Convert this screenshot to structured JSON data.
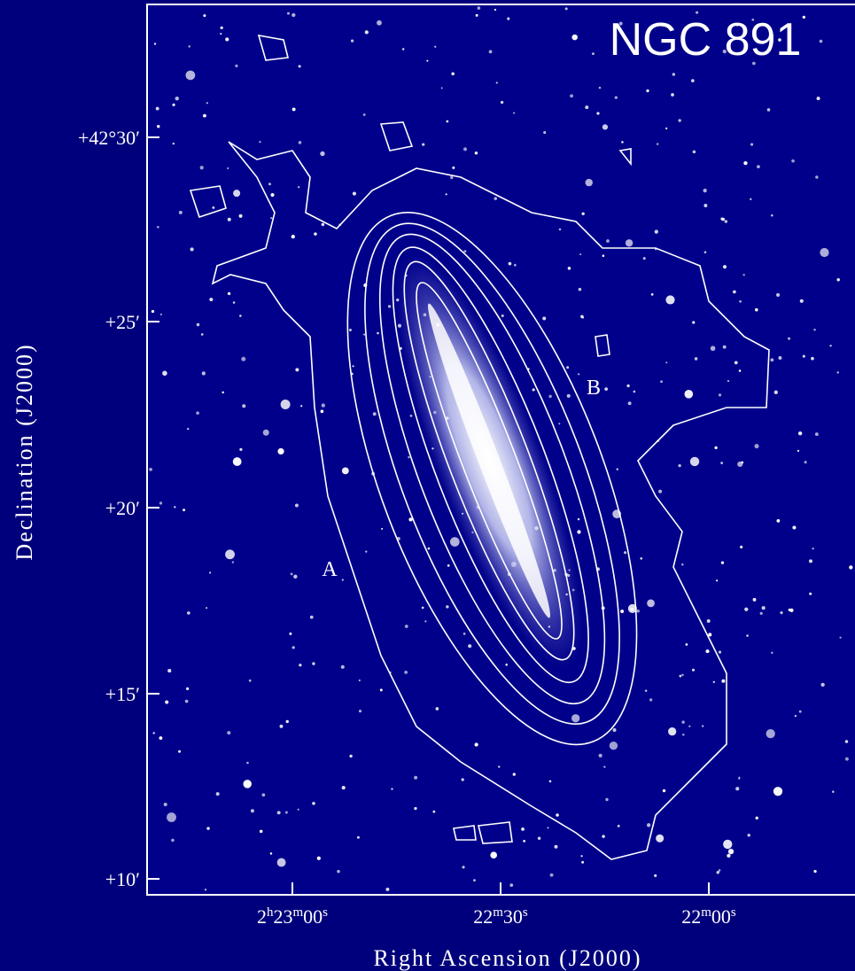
{
  "title": "NGC 891",
  "x_axis": {
    "label": "Right Ascension (J2000)",
    "ticks": [
      [
        "2",
        "h",
        "23",
        "m",
        "00",
        "s"
      ],
      [
        "22",
        "m",
        "30",
        "s"
      ],
      [
        "22",
        "m",
        "00",
        "s"
      ]
    ]
  },
  "y_axis": {
    "label": "Declination (J2000)",
    "ticks": [
      "+42°30′",
      "+25′",
      "+20′",
      "+15′",
      "+10′"
    ]
  },
  "annotations": [
    "A",
    "B"
  ]
}
